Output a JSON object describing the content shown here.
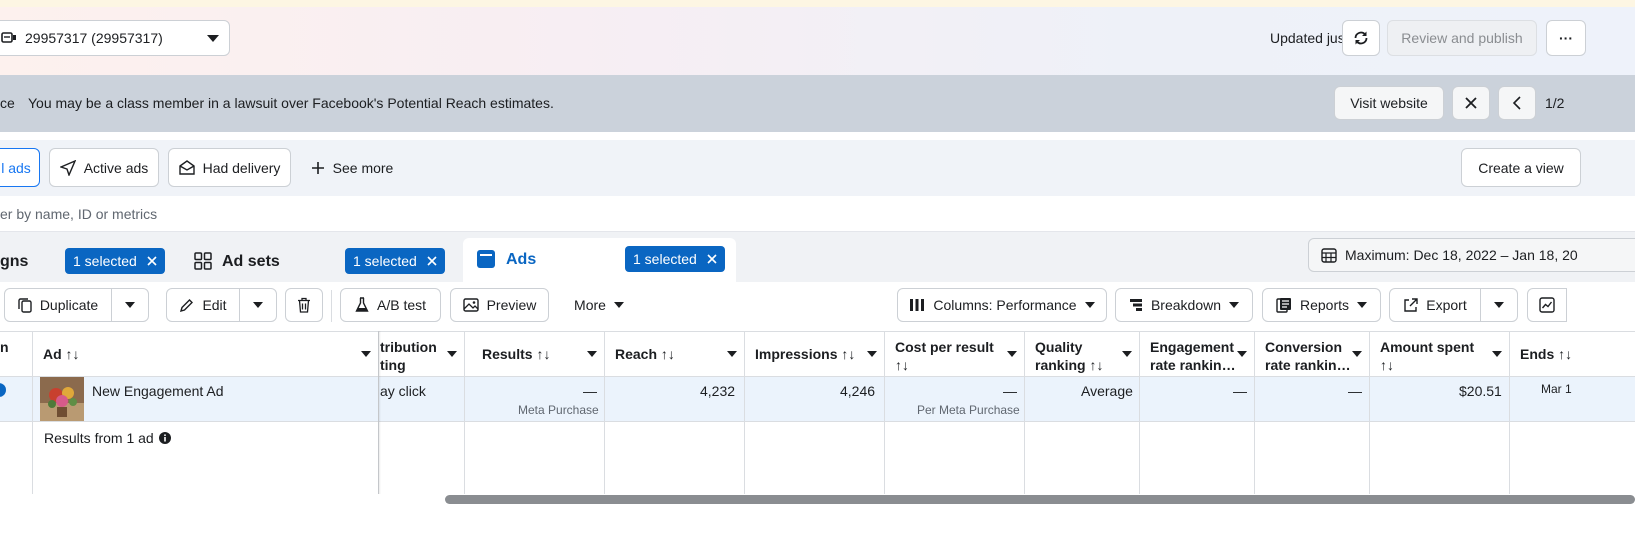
{
  "header": {
    "account_label": "29957317 (29957317)",
    "updated": "Updated just now",
    "review_publish": "Review and publish",
    "more": "···"
  },
  "notice": {
    "prefix": "ce",
    "message": "You may be a class member in a lawsuit over Facebook's Potential Reach estimates.",
    "visit_website": "Visit website",
    "pager": "1/2"
  },
  "filters": {
    "all_ads": "l ads",
    "active_ads": "Active ads",
    "had_delivery": "Had delivery",
    "see_more": "See more",
    "create_view": "Create a view"
  },
  "search": {
    "placeholder": "er by name, ID or metrics"
  },
  "tabs": [
    {
      "label": "gns",
      "badge": "1 selected"
    },
    {
      "label": "Ad sets",
      "badge": "1 selected"
    },
    {
      "label": "Ads",
      "badge": "1 selected"
    }
  ],
  "date_range": "Maximum: Dec 18, 2022 – Jan 18, 20",
  "toolbar": {
    "duplicate": "Duplicate",
    "edit": "Edit",
    "ab_test": "A/B test",
    "preview": "Preview",
    "more": "More",
    "columns": "Columns: Performance",
    "breakdown": "Breakdown",
    "reports": "Reports",
    "export": "Export"
  },
  "table": {
    "headers": {
      "first": "n",
      "ad": "Ad ↑↓",
      "attribution1": "tribution",
      "attribution2": "ting",
      "results": "Results ↑↓",
      "reach": "Reach ↑↓",
      "impressions": "Impressions ↑↓",
      "cpr1": "Cost per result",
      "cpr2": "↑↓",
      "quality1": "Quality",
      "quality2": "ranking ↑↓",
      "engagement1": "Engagement",
      "engagement2": "rate rankin…",
      "conversion1": "Conversion",
      "conversion2": "rate rankin…",
      "amount1": "Amount spent",
      "amount2": "↑↓",
      "ends": "Ends ↑↓"
    },
    "row": {
      "ad_name": "New Engagement Ad",
      "attribution": "ay click",
      "results": "—",
      "results_sub": "Meta Purchase",
      "reach": "4,232",
      "impressions": "4,246",
      "cpr": "—",
      "cpr_sub": "Per Meta Purchase",
      "quality": "Average",
      "engagement": "—",
      "conversion": "—",
      "amount": "$20.51",
      "ends": "Mar 1"
    },
    "summary": "Results from 1 ad"
  }
}
